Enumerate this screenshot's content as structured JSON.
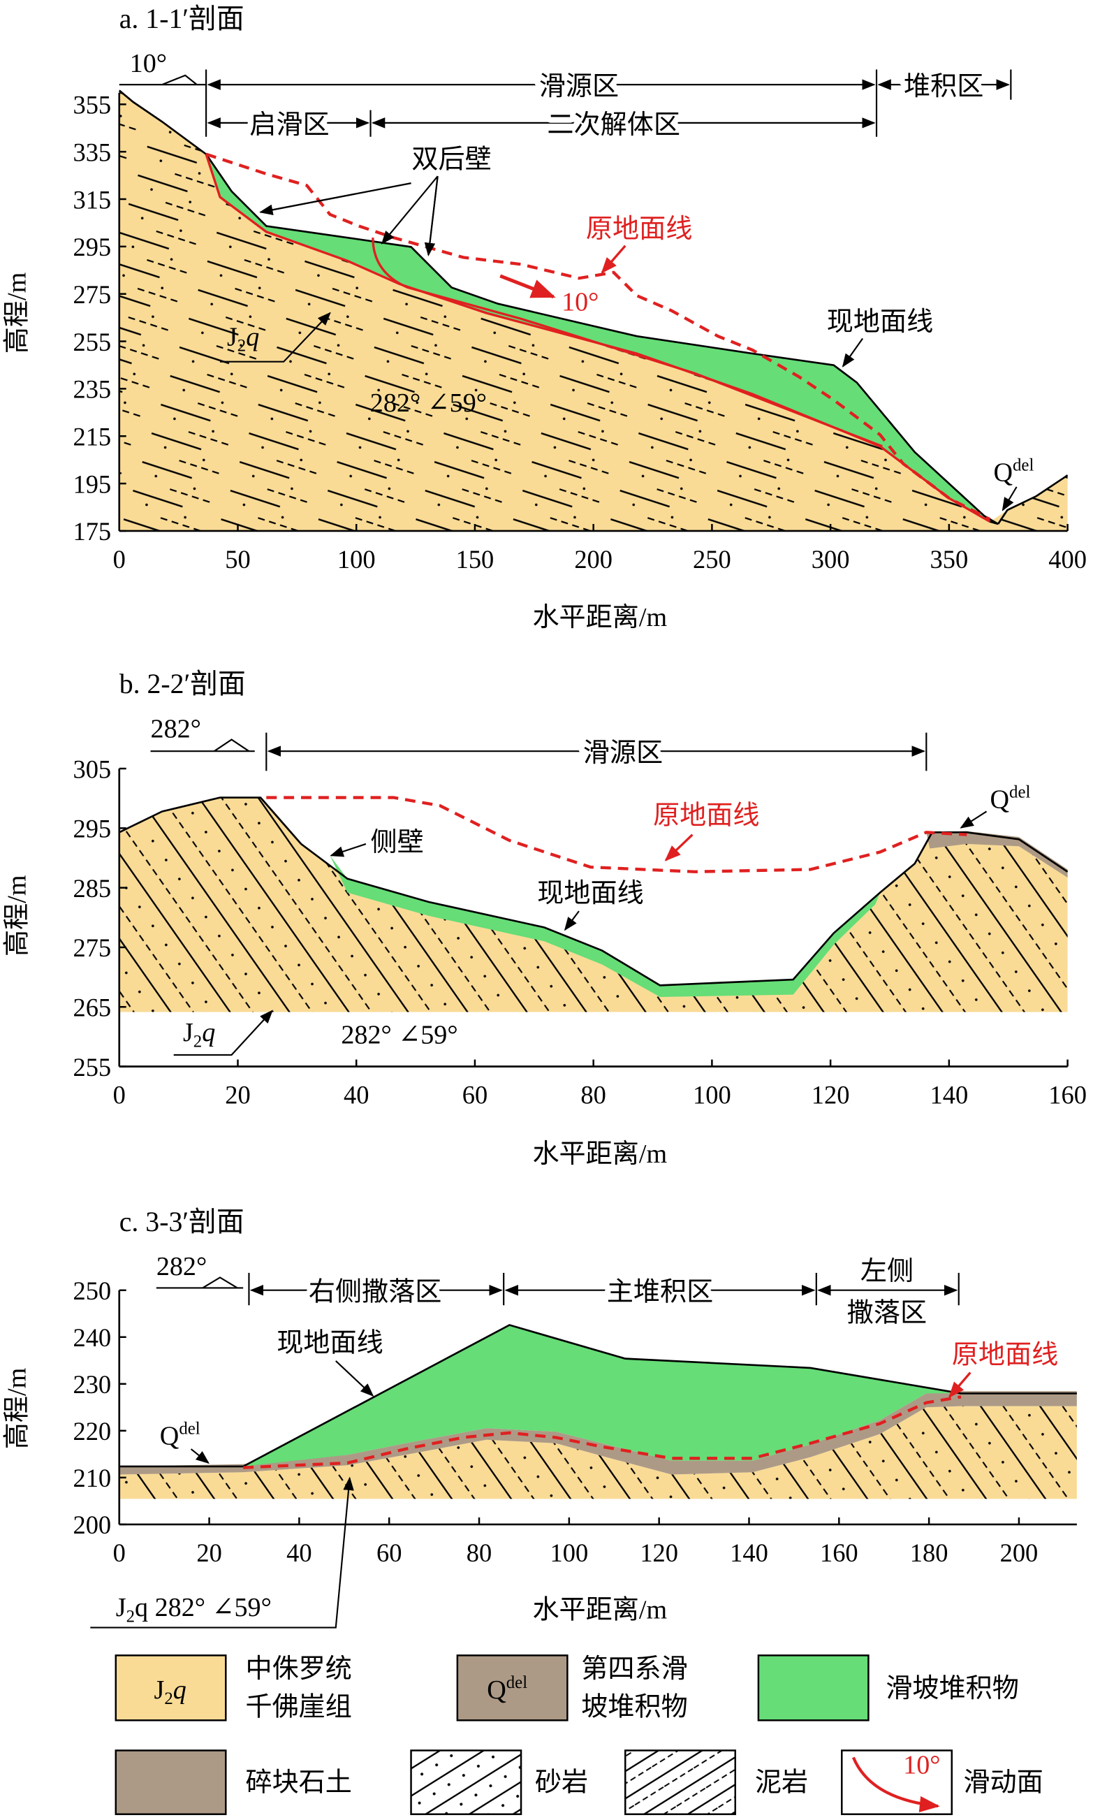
{
  "panels": [
    {
      "title": "a. 1-1′剖面",
      "strike": "10°",
      "zones_top": [
        "滑源区",
        "堆积区"
      ],
      "zones_bottom": [
        "启滑区",
        "二次解体区"
      ],
      "labels": {
        "double_wall": "双后壁",
        "original_ground": "原地面线",
        "slip_angle": "10°",
        "current_ground": "现地面线",
        "strata": {
          "base": "J",
          "sub": "2",
          "tail": "q"
        },
        "attitude": "282° ∠59°",
        "qdel": {
          "base": "Q",
          "sup": "del"
        }
      },
      "y_axis_label": "高程/m",
      "x_axis_label": "水平距离/m",
      "yticks": [
        355,
        335,
        315,
        295,
        275,
        255,
        235,
        215,
        195,
        175
      ],
      "xticks": [
        0,
        50,
        100,
        150,
        200,
        250,
        300,
        350,
        400
      ]
    },
    {
      "title": "b. 2-2′剖面",
      "strike": "282°",
      "zones_top": [
        "滑源区"
      ],
      "labels": {
        "side_wall": "侧壁",
        "original_ground": "原地面线",
        "current_ground": "现地面线",
        "strata": {
          "base": "J",
          "sub": "2",
          "tail": "q"
        },
        "attitude": "282° ∠59°",
        "qdel": {
          "base": "Q",
          "sup": "del"
        }
      },
      "y_axis_label": "高程/m",
      "x_axis_label": "水平距离/m",
      "yticks": [
        305,
        295,
        285,
        275,
        265,
        255
      ],
      "xticks": [
        0,
        20,
        40,
        60,
        80,
        100,
        120,
        140,
        160
      ]
    },
    {
      "title": "c. 3-3′剖面",
      "strike": "282°",
      "zones_top": [
        "右侧撒落区",
        "主堆积区"
      ],
      "zone_left": [
        "左侧",
        "撒落区"
      ],
      "labels": {
        "current_ground": "现地面线",
        "original_ground": "原地面线",
        "qdel": {
          "base": "Q",
          "sup": "del"
        },
        "strata": {
          "base": "J",
          "sub": "2",
          "tail": "q 282° ∠59°"
        }
      },
      "y_axis_label": "高程/m",
      "x_axis_label": "水平距离/m",
      "yticks": [
        250,
        240,
        230,
        220,
        210,
        200
      ],
      "xticks": [
        0,
        20,
        40,
        60,
        80,
        100,
        120,
        140,
        160,
        180,
        200
      ]
    }
  ],
  "legend": [
    {
      "symbol": {
        "base": "J",
        "sub": "2",
        "tail": "q"
      },
      "lines": [
        "中侏罗统",
        "千佛崖组"
      ]
    },
    {
      "symbol": {
        "base": "Q",
        "sup": "del"
      },
      "lines": [
        "第四系滑",
        "坡堆积物"
      ]
    },
    {
      "lines": [
        "滑坡堆积物"
      ]
    },
    {
      "lines": [
        "碎块石土"
      ]
    },
    {
      "lines": [
        "砂岩"
      ]
    },
    {
      "lines": [
        "泥岩"
      ]
    },
    {
      "symbol": "10°",
      "lines": [
        "滑动面"
      ]
    }
  ]
}
